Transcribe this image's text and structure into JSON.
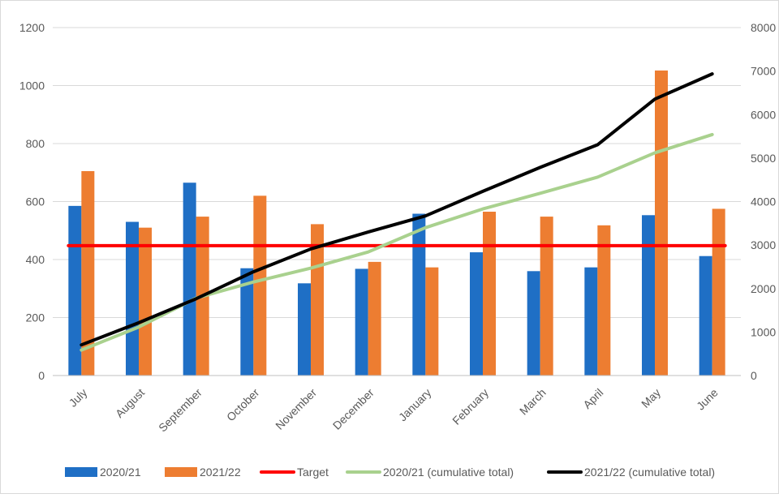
{
  "chart_data": {
    "type": "bar",
    "categories": [
      "July",
      "August",
      "September",
      "October",
      "November",
      "December",
      "January",
      "February",
      "March",
      "April",
      "May",
      "June"
    ],
    "series": [
      {
        "name": "2020/21",
        "kind": "bar",
        "axis": "left",
        "color": "#1f6fc5",
        "values": [
          585,
          530,
          665,
          370,
          318,
          368,
          558,
          425,
          360,
          373,
          553,
          412
        ]
      },
      {
        "name": "2021/22",
        "kind": "bar",
        "axis": "left",
        "color": "#ed7d31",
        "values": [
          705,
          510,
          548,
          620,
          522,
          392,
          373,
          565,
          548,
          518,
          1052,
          575
        ]
      },
      {
        "name": "Target",
        "kind": "line",
        "axis": "left",
        "color": "#ff0000",
        "values": [
          448,
          448,
          448,
          448,
          448,
          448,
          448,
          448,
          448,
          448,
          448,
          448
        ]
      },
      {
        "name": "2020/21 (cumulative total)",
        "kind": "line",
        "axis": "right",
        "color": "#a9d18e",
        "values": [
          585,
          1115,
          1780,
          2150,
          2470,
          2840,
          3400,
          3830,
          4190,
          4560,
          5120,
          5540
        ]
      },
      {
        "name": "2021/22 (cumulative total)",
        "kind": "line",
        "axis": "right",
        "color": "#000000",
        "values": [
          705,
          1215,
          1765,
          2385,
          2910,
          3300,
          3670,
          4235,
          4785,
          5305,
          6355,
          6935
        ]
      }
    ],
    "y_left": {
      "min": 0,
      "max": 1200,
      "ticks": [
        0,
        200,
        400,
        600,
        800,
        1000,
        1200
      ]
    },
    "y_right": {
      "min": 0,
      "max": 8000,
      "ticks": [
        0,
        1000,
        2000,
        3000,
        4000,
        5000,
        6000,
        7000,
        8000
      ]
    },
    "grid": true,
    "legend_position": "bottom"
  }
}
